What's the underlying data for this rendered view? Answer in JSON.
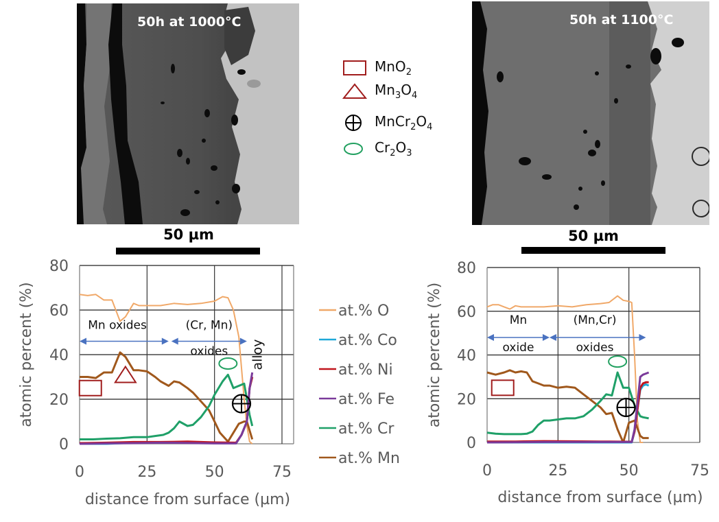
{
  "micrographs": [
    {
      "title": "50h at 1000°C",
      "scale_bar_label": "50 µm"
    },
    {
      "title": "50h at 1100°C",
      "scale_bar_label": "50 µm"
    }
  ],
  "phase_legend": [
    {
      "symbol": "square",
      "name": "MnO",
      "sub": "2",
      "name2": "",
      "sub2": "",
      "color": "#a01c1c"
    },
    {
      "symbol": "triangle",
      "name": "Mn",
      "sub": "3",
      "name2": "O",
      "sub2": "4",
      "color": "#a01c1c"
    },
    {
      "symbol": "circle-plus",
      "name": "MnCr",
      "sub": "2",
      "name2": "O",
      "sub2": "4",
      "color": "#000000"
    },
    {
      "symbol": "ellipse",
      "name": "Cr",
      "sub": "2",
      "name2": "O",
      "sub2": "3",
      "color": "#22a060"
    }
  ],
  "series_legend": [
    {
      "label": "at.% O",
      "color": "#f0a868"
    },
    {
      "label": "at.% Co",
      "color": "#1ea8d8"
    },
    {
      "label": "at.% Ni",
      "color": "#c0141c"
    },
    {
      "label": "at.% Fe",
      "color": "#7a3a9a"
    },
    {
      "label": "at.% Cr",
      "color": "#1fa068"
    },
    {
      "label": "at.% Mn",
      "color": "#a0581c"
    }
  ],
  "chart_data": [
    {
      "type": "line",
      "title": "50h at 1000°C",
      "xlabel": "distance from surface (µm)",
      "ylabel": "atomic percent (%)",
      "xlim": [
        0,
        75
      ],
      "ylim": [
        0,
        80
      ],
      "xticks": [
        "0",
        "25",
        "50",
        "75"
      ],
      "yticks": [
        "0",
        "20",
        "40",
        "60",
        "80"
      ],
      "grid": true,
      "legend": "right",
      "annotations": {
        "region1": "Mn oxides",
        "region2_line1": "(Cr, Mn)",
        "region2_line2": "oxides",
        "alloy": "alloy",
        "arrows": [
          [
            0,
            33
          ],
          [
            34,
            62
          ]
        ],
        "arrow_y": 46,
        "markers": [
          {
            "symbol": "square",
            "x": 4,
            "y": 25
          },
          {
            "symbol": "triangle",
            "x": 17,
            "y": 30
          },
          {
            "symbol": "ellipse",
            "x": 55,
            "y": 36
          },
          {
            "symbol": "circle-plus",
            "x": 60,
            "y": 18
          }
        ]
      },
      "series": [
        {
          "name": "at.% O",
          "x": [
            0,
            3,
            6,
            9,
            12,
            15,
            17,
            20,
            22,
            25,
            30,
            35,
            40,
            45,
            50,
            53,
            55,
            57,
            59,
            61,
            62,
            63,
            64
          ],
          "y": [
            67,
            66.5,
            67,
            64.5,
            64.5,
            55,
            57,
            63,
            62,
            62,
            62,
            63,
            62.5,
            63,
            64,
            66,
            65.5,
            60,
            48,
            20,
            8,
            1,
            0
          ]
        },
        {
          "name": "at.% Co",
          "x": [
            0,
            10,
            20,
            30,
            40,
            50,
            58,
            60,
            62,
            63,
            64
          ],
          "y": [
            0,
            0,
            0.5,
            0.5,
            0.5,
            0.3,
            0.3,
            4,
            10,
            25,
            30
          ]
        },
        {
          "name": "at.% Ni",
          "x": [
            0,
            10,
            20,
            30,
            40,
            50,
            58,
            60,
            62,
            63,
            64
          ],
          "y": [
            0.3,
            0.5,
            0.8,
            0.8,
            1,
            0.6,
            0.5,
            4,
            10,
            25,
            30
          ]
        },
        {
          "name": "at.% Fe",
          "x": [
            0,
            10,
            20,
            30,
            40,
            50,
            58,
            60,
            62,
            63,
            64
          ],
          "y": [
            0,
            0.2,
            0.3,
            0.5,
            0.4,
            0.2,
            0.2,
            4,
            10,
            25,
            32
          ]
        },
        {
          "name": "at.% Cr",
          "x": [
            0,
            5,
            10,
            15,
            20,
            25,
            28,
            31,
            33,
            35,
            37,
            40,
            42,
            45,
            48,
            50,
            53,
            55,
            57,
            59,
            61,
            62,
            63,
            64
          ],
          "y": [
            2,
            2,
            2.3,
            2.5,
            3,
            3,
            3.5,
            4,
            5,
            7,
            10,
            8,
            8.5,
            12,
            17,
            22,
            28,
            31,
            25,
            26,
            27,
            20,
            13,
            8
          ]
        },
        {
          "name": "at.% Mn",
          "x": [
            0,
            3,
            6,
            9,
            12,
            15,
            17,
            20,
            22,
            25,
            28,
            30,
            33,
            35,
            37,
            40,
            42,
            45,
            48,
            50,
            52,
            55,
            57,
            59,
            61,
            62,
            63,
            64
          ],
          "y": [
            30,
            30,
            29.5,
            32,
            32,
            41,
            39,
            33,
            33,
            32.5,
            30,
            28,
            26,
            28,
            27.5,
            25,
            23,
            19,
            15,
            10,
            5,
            1,
            5,
            9,
            10,
            10,
            6,
            2
          ]
        }
      ]
    },
    {
      "type": "line",
      "title": "50h at 1100°C",
      "xlabel": "distance from surface (µm)",
      "ylabel": "atomic percent (%)",
      "xlim": [
        0,
        75
      ],
      "ylim": [
        0,
        80
      ],
      "xticks": [
        "0",
        "25",
        "50",
        "75"
      ],
      "yticks": [
        "0",
        "20",
        "40",
        "60",
        "80"
      ],
      "grid": true,
      "legend": "none",
      "annotations": {
        "region1_line1": "Mn",
        "region1_line2": "oxide",
        "region2_line1": "(Mn,Cr)",
        "region2_line2": "oxides",
        "arrows": [
          [
            0,
            22
          ],
          [
            22,
            56
          ]
        ],
        "arrow_y": 48,
        "markers": [
          {
            "symbol": "square",
            "x": 5.5,
            "y": 25
          },
          {
            "symbol": "ellipse",
            "x": 46,
            "y": 37
          },
          {
            "symbol": "circle-plus",
            "x": 49,
            "y": 16
          }
        ]
      },
      "series": [
        {
          "name": "at.% O",
          "x": [
            0,
            2,
            4,
            6,
            8,
            10,
            12,
            15,
            20,
            25,
            30,
            35,
            40,
            43,
            46,
            48,
            50,
            51,
            52,
            53,
            54,
            55
          ],
          "y": [
            62,
            63,
            63,
            62,
            61,
            62.5,
            62,
            62,
            62,
            62.5,
            62,
            63,
            63.5,
            64,
            67,
            65,
            64.5,
            64,
            40,
            10,
            0,
            0
          ]
        },
        {
          "name": "at.% Co",
          "x": [
            0,
            10,
            20,
            30,
            40,
            50,
            51,
            52,
            53,
            54,
            55,
            56,
            57
          ],
          "y": [
            0,
            0,
            0,
            0,
            0,
            0,
            0,
            5,
            15,
            24,
            26,
            26.5,
            26
          ]
        },
        {
          "name": "at.% Ni",
          "x": [
            0,
            10,
            20,
            30,
            40,
            50,
            51,
            52,
            53,
            54,
            55,
            56,
            57
          ],
          "y": [
            0.4,
            0.4,
            0.6,
            0.5,
            0.4,
            0.3,
            0.3,
            5,
            15,
            25,
            27,
            27.5,
            27.5
          ]
        },
        {
          "name": "at.% Fe",
          "x": [
            0,
            10,
            20,
            30,
            40,
            50,
            51,
            52,
            53,
            54,
            55,
            56,
            57
          ],
          "y": [
            0,
            0.1,
            0.2,
            0.2,
            0.2,
            0.2,
            0.2,
            6,
            18,
            30,
            31,
            31.5,
            32
          ]
        },
        {
          "name": "at.% Cr",
          "x": [
            0,
            3,
            6,
            9,
            12,
            14,
            16,
            18,
            20,
            22,
            25,
            28,
            31,
            34,
            37,
            40,
            42,
            44,
            46,
            48,
            50,
            52,
            54,
            55,
            57
          ],
          "y": [
            4.5,
            4,
            3.8,
            3.8,
            3.8,
            4,
            5,
            8,
            10,
            10,
            10.5,
            11,
            11,
            12,
            15,
            19,
            22,
            21.5,
            32,
            25,
            25,
            17,
            12,
            11.5,
            11
          ]
        },
        {
          "name": "at.% Mn",
          "x": [
            0,
            3,
            6,
            8,
            10,
            12,
            14,
            16,
            18,
            20,
            22,
            25,
            28,
            31,
            34,
            37,
            40,
            42,
            44,
            46,
            48,
            50,
            52,
            54,
            55,
            57
          ],
          "y": [
            32,
            31,
            32,
            33,
            32,
            32.5,
            32,
            28,
            27,
            26,
            26,
            25,
            25.5,
            25,
            22,
            19,
            16,
            13,
            13.5,
            6,
            0,
            9,
            10,
            3,
            2,
            2
          ]
        }
      ]
    }
  ]
}
